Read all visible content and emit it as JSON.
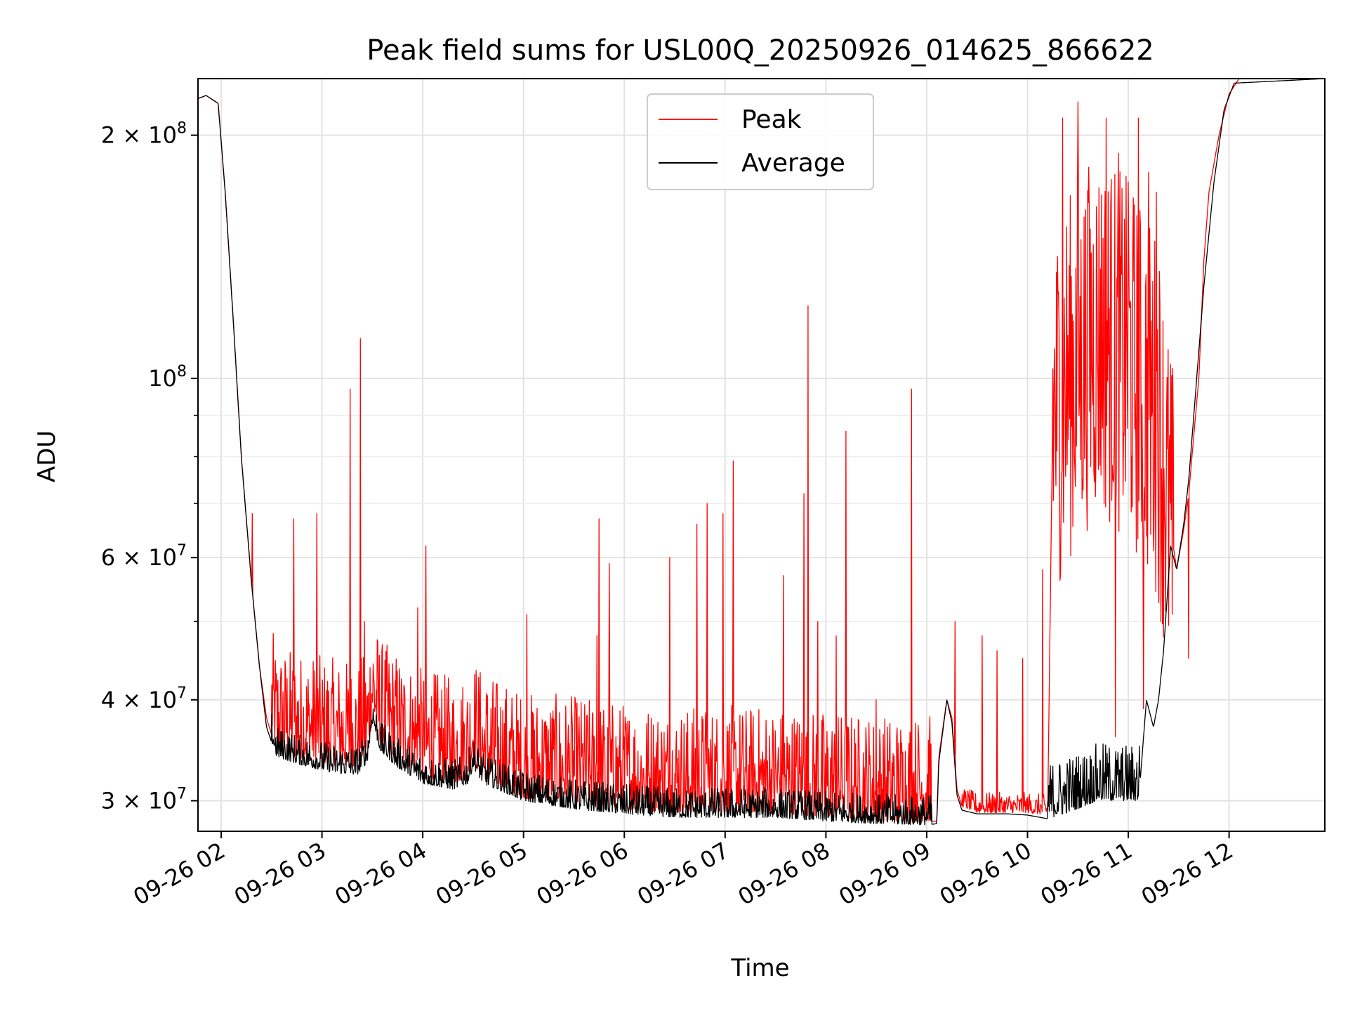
{
  "chart_data": {
    "type": "line",
    "title": "Peak field sums for USL00Q_20250926_014625_866622",
    "xlabel": "Time",
    "ylabel": "ADU",
    "yscale": "log",
    "xlim": [
      1.77,
      12.95
    ],
    "ylim": [
      27500000,
      235000000
    ],
    "grid": true,
    "legend": {
      "position": "top-center",
      "entries": [
        "Peak",
        "Average"
      ]
    },
    "x_ticks": [
      {
        "value": 2,
        "label": "09-26 02"
      },
      {
        "value": 3,
        "label": "09-26 03"
      },
      {
        "value": 4,
        "label": "09-26 04"
      },
      {
        "value": 5,
        "label": "09-26 05"
      },
      {
        "value": 6,
        "label": "09-26 06"
      },
      {
        "value": 7,
        "label": "09-26 07"
      },
      {
        "value": 8,
        "label": "09-26 08"
      },
      {
        "value": 9,
        "label": "09-26 09"
      },
      {
        "value": 10,
        "label": "09-26 10"
      },
      {
        "value": 11,
        "label": "09-26 11"
      },
      {
        "value": 12,
        "label": "09-26 12"
      }
    ],
    "y_ticks": [
      {
        "value": 30000000,
        "mant": "3",
        "exp": "7"
      },
      {
        "value": 40000000,
        "mant": "4",
        "exp": "7"
      },
      {
        "value": 60000000,
        "mant": "6",
        "exp": "7"
      },
      {
        "value": 100000000,
        "mant": "",
        "exp": "8"
      },
      {
        "value": 200000000,
        "mant": "2",
        "exp": "8"
      }
    ],
    "y_minor_ticks": [
      50000000,
      70000000,
      80000000,
      90000000
    ],
    "series": [
      {
        "name": "Peak",
        "color": "#ff0000",
        "baseline": [
          [
            1.77,
            222000000
          ],
          [
            1.85,
            224000000
          ],
          [
            1.97,
            219000000
          ],
          [
            2.04,
            170000000
          ],
          [
            2.12,
            118000000
          ],
          [
            2.2,
            80000000
          ],
          [
            2.3,
            56000000
          ],
          [
            2.38,
            44000000
          ],
          [
            2.45,
            38000000
          ],
          [
            2.55,
            34500000
          ],
          [
            2.8,
            33800000
          ],
          [
            3.1,
            33200000
          ],
          [
            3.35,
            33000000
          ],
          [
            3.45,
            34000000
          ],
          [
            3.5,
            38000000
          ],
          [
            3.58,
            35000000
          ],
          [
            3.75,
            33800000
          ],
          [
            4.0,
            32200000
          ],
          [
            4.3,
            31500000
          ],
          [
            4.45,
            32000000
          ],
          [
            4.5,
            33500000
          ],
          [
            4.6,
            32000000
          ],
          [
            5.0,
            30200000
          ],
          [
            5.5,
            29800000
          ],
          [
            6.0,
            29300000
          ],
          [
            6.5,
            29000000
          ],
          [
            7.0,
            29000000
          ],
          [
            7.5,
            29000000
          ],
          [
            8.0,
            28600000
          ],
          [
            8.5,
            28300000
          ],
          [
            9.0,
            28300000
          ],
          [
            9.1,
            28300000
          ],
          [
            9.12,
            34000000
          ],
          [
            9.2,
            40000000
          ],
          [
            9.25,
            38000000
          ],
          [
            9.3,
            31000000
          ],
          [
            9.35,
            29500000
          ],
          [
            9.5,
            29000000
          ],
          [
            9.8,
            29000000
          ],
          [
            10.0,
            29000000
          ],
          [
            10.2,
            28800000
          ],
          [
            10.25,
            90000000
          ],
          [
            10.4,
            100000000
          ],
          [
            10.7,
            115000000
          ],
          [
            11.0,
            105000000
          ],
          [
            11.3,
            90000000
          ],
          [
            11.4,
            68000000
          ],
          [
            11.48,
            58000000
          ],
          [
            11.55,
            65000000
          ],
          [
            11.6,
            72000000
          ],
          [
            11.65,
            85000000
          ],
          [
            11.7,
            100000000
          ],
          [
            11.75,
            140000000
          ],
          [
            11.8,
            170000000
          ],
          [
            11.9,
            200000000
          ],
          [
            12.0,
            225000000
          ],
          [
            12.1,
            235000000
          ],
          [
            12.95,
            235000000
          ]
        ],
        "noise": [
          {
            "start": 2.5,
            "end": 9.05,
            "amplitude": 1.12
          },
          {
            "start": 9.35,
            "end": 10.2,
            "amplitude": 1.02
          },
          {
            "start": 10.25,
            "end": 11.45,
            "amplitude": 1.55
          }
        ],
        "spikes": [
          [
            2.31,
            68000000
          ],
          [
            2.72,
            67000000
          ],
          [
            2.95,
            68000000
          ],
          [
            3.28,
            97000000
          ],
          [
            3.38,
            112000000
          ],
          [
            3.42,
            50000000
          ],
          [
            4.03,
            62000000
          ],
          [
            3.95,
            52000000
          ],
          [
            5.03,
            51000000
          ],
          [
            5.75,
            67000000
          ],
          [
            5.85,
            59000000
          ],
          [
            5.73,
            48000000
          ],
          [
            6.45,
            60000000
          ],
          [
            6.72,
            66000000
          ],
          [
            6.82,
            70000000
          ],
          [
            6.98,
            68000000
          ],
          [
            7.08,
            79000000
          ],
          [
            7.58,
            57000000
          ],
          [
            7.78,
            72000000
          ],
          [
            7.82,
            123000000
          ],
          [
            7.92,
            50000000
          ],
          [
            8.2,
            86000000
          ],
          [
            8.1,
            48000000
          ],
          [
            8.5,
            40000000
          ],
          [
            8.85,
            97000000
          ],
          [
            9.28,
            50000000
          ],
          [
            9.55,
            48000000
          ],
          [
            9.7,
            46000000
          ],
          [
            10.15,
            58000000
          ],
          [
            9.95,
            45000000
          ],
          [
            10.35,
            210000000
          ],
          [
            10.5,
            220000000
          ],
          [
            10.78,
            210000000
          ],
          [
            11.1,
            210000000
          ],
          [
            11.2,
            180000000
          ],
          [
            11.28,
            170000000
          ],
          [
            11.0,
            175000000
          ],
          [
            10.9,
            190000000
          ],
          [
            10.6,
            165000000
          ],
          [
            11.6,
            45000000
          ]
        ],
        "dips": [
          [
            10.87,
            36000000
          ],
          [
            11.15,
            39000000
          ]
        ]
      },
      {
        "name": "Average",
        "color": "#000000",
        "baseline": [
          [
            1.77,
            222000000
          ],
          [
            1.85,
            224000000
          ],
          [
            1.97,
            219000000
          ],
          [
            2.04,
            170000000
          ],
          [
            2.12,
            118000000
          ],
          [
            2.2,
            80000000
          ],
          [
            2.3,
            56000000
          ],
          [
            2.38,
            44000000
          ],
          [
            2.45,
            37000000
          ],
          [
            2.55,
            34000000
          ],
          [
            2.8,
            33200000
          ],
          [
            3.1,
            32500000
          ],
          [
            3.35,
            32300000
          ],
          [
            3.45,
            33500000
          ],
          [
            3.5,
            37500000
          ],
          [
            3.58,
            34500000
          ],
          [
            3.75,
            33000000
          ],
          [
            4.0,
            31500000
          ],
          [
            4.3,
            31000000
          ],
          [
            4.45,
            31500000
          ],
          [
            4.5,
            33000000
          ],
          [
            4.6,
            31500000
          ],
          [
            5.0,
            30000000
          ],
          [
            5.5,
            29300000
          ],
          [
            6.0,
            28900000
          ],
          [
            6.5,
            28600000
          ],
          [
            7.0,
            28600000
          ],
          [
            7.5,
            28600000
          ],
          [
            8.0,
            28300000
          ],
          [
            8.5,
            28100000
          ],
          [
            9.0,
            28000000
          ],
          [
            9.1,
            28100000
          ],
          [
            9.12,
            33500000
          ],
          [
            9.2,
            40000000
          ],
          [
            9.25,
            37500000
          ],
          [
            9.3,
            30500000
          ],
          [
            9.35,
            29200000
          ],
          [
            9.5,
            28900000
          ],
          [
            9.8,
            28900000
          ],
          [
            10.0,
            28800000
          ],
          [
            10.2,
            28500000
          ],
          [
            10.4,
            29000000
          ],
          [
            10.7,
            30000000
          ],
          [
            11.0,
            30000000
          ],
          [
            11.1,
            30000000
          ],
          [
            11.12,
            32000000
          ],
          [
            11.18,
            40000000
          ],
          [
            11.25,
            37000000
          ],
          [
            11.3,
            40000000
          ],
          [
            11.35,
            46000000
          ],
          [
            11.42,
            62000000
          ],
          [
            11.48,
            58000000
          ],
          [
            11.55,
            66000000
          ],
          [
            11.6,
            75000000
          ],
          [
            11.65,
            90000000
          ],
          [
            11.75,
            130000000
          ],
          [
            11.85,
            175000000
          ],
          [
            11.95,
            215000000
          ],
          [
            12.05,
            232000000
          ],
          [
            12.95,
            235000000
          ]
        ],
        "noise": [
          {
            "start": 2.5,
            "end": 9.05,
            "amplitude": 1.03
          },
          {
            "start": 10.2,
            "end": 11.12,
            "amplitude": 1.06
          }
        ],
        "spikes": [],
        "dips": []
      }
    ]
  }
}
